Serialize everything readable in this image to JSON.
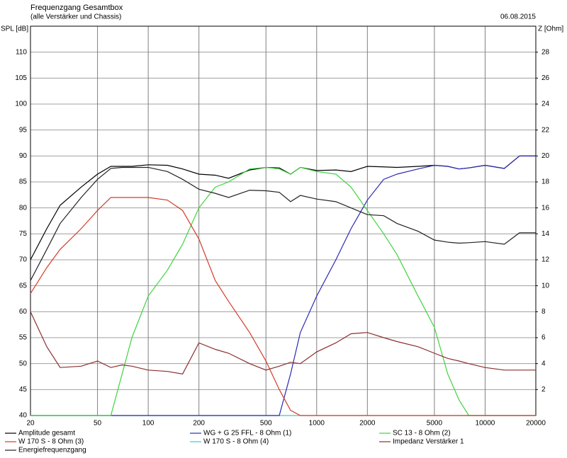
{
  "chart_data": {
    "type": "line",
    "title": "Frequenzgang Gesamtbox",
    "subtitle": "(alle Verstärker und Chassis)",
    "date": "06.08.2015",
    "y_label": "SPL [dB]",
    "y2_label": "Z [Ohm]",
    "xscale": "log",
    "grid": true,
    "xlim": [
      20,
      20000
    ],
    "xticks": [
      20,
      50,
      100,
      200,
      500,
      1000,
      2000,
      5000,
      10000,
      20000
    ],
    "ylim": [
      40,
      115
    ],
    "yticks": [
      40,
      45,
      50,
      55,
      60,
      65,
      70,
      75,
      80,
      85,
      90,
      95,
      100,
      105,
      110
    ],
    "y2lim": [
      0,
      30
    ],
    "y2ticks": [
      2,
      4,
      6,
      8,
      10,
      12,
      14,
      16,
      18,
      20,
      22,
      24,
      26,
      28
    ],
    "x": [
      20,
      25,
      30,
      40,
      50,
      60,
      70,
      80,
      100,
      130,
      160,
      200,
      250,
      300,
      400,
      500,
      600,
      700,
      800,
      1000,
      1300,
      1600,
      2000,
      2500,
      3000,
      4000,
      5000,
      6000,
      7000,
      8000,
      10000,
      13000,
      16000,
      20000
    ],
    "series": [
      {
        "name": "Amplitude gesamt",
        "color": "#000000",
        "values": [
          70,
          76,
          80.5,
          84,
          86.5,
          88,
          88,
          88,
          88.3,
          88.2,
          87.5,
          86.5,
          86.3,
          85.7,
          87.3,
          87.8,
          87.7,
          86.5,
          87.8,
          87.2,
          87.3,
          87,
          88,
          87.9,
          87.8,
          88,
          88.2,
          88,
          87.5,
          87.7,
          88.2,
          87.6,
          90,
          90
        ]
      },
      {
        "name": "WG + G 25 FFL - 8 Ohm (1)",
        "color": "#2a2ab4",
        "values": [
          40,
          40,
          40,
          40,
          40,
          40,
          40,
          40,
          40,
          40,
          40,
          40,
          40,
          40,
          40,
          40,
          40,
          48,
          56,
          63,
          70,
          76,
          81.5,
          85.5,
          86.5,
          87.5,
          88.2,
          88,
          87.5,
          87.7,
          88.2,
          87.6,
          90,
          90
        ]
      },
      {
        "name": "SC 13 - 8 Ohm (2)",
        "color": "#3fd43f",
        "values": [
          40,
          40,
          40,
          40,
          40,
          40,
          48,
          55,
          63,
          68,
          73,
          80,
          84,
          85,
          87.5,
          87.8,
          87.5,
          86.5,
          87.8,
          87,
          86.5,
          84,
          79.5,
          75,
          71,
          63,
          57,
          48,
          43,
          40,
          40,
          40,
          40,
          40
        ]
      },
      {
        "name": "W 170 S - 8 Ohm (3)",
        "color": "#d23c2a",
        "values": [
          63.5,
          68.5,
          72,
          76,
          79.5,
          82,
          82,
          82,
          82,
          81.5,
          79.5,
          74,
          66,
          62,
          56,
          50.5,
          45,
          41,
          40,
          40,
          40,
          40,
          40,
          40,
          40,
          40,
          40,
          40,
          40,
          40,
          40,
          40,
          40,
          40
        ]
      },
      {
        "name": "W 170 S - 8 Ohm (4)",
        "color": "#3cc8d2",
        "values": [
          40,
          40,
          40,
          40,
          40,
          40,
          40,
          40,
          40,
          40,
          40,
          40,
          40,
          40,
          40,
          40,
          40,
          40,
          40,
          40,
          40,
          40,
          40,
          40,
          40,
          40,
          40,
          40,
          40,
          40,
          40,
          40,
          40,
          40
        ]
      },
      {
        "name": "Impedanz Verstärker 1",
        "color": "#8b2e2e",
        "axis": "y2",
        "values": [
          8,
          5.3,
          3.7,
          3.8,
          4.2,
          3.7,
          3.9,
          3.8,
          3.5,
          3.4,
          3.2,
          5.6,
          5.1,
          4.8,
          4,
          3.5,
          3.8,
          4.1,
          4,
          4.9,
          5.6,
          6.3,
          6.4,
          6,
          5.7,
          5.3,
          4.8,
          4.4,
          4.2,
          4,
          3.7,
          3.5,
          3.5,
          3.5
        ]
      },
      {
        "name": "Energiefrequenzgang",
        "color": "#222222",
        "values": [
          66,
          72,
          77,
          82,
          85.5,
          87.6,
          87.8,
          87.8,
          87.8,
          87,
          85.5,
          83.6,
          82.8,
          82,
          83.4,
          83.3,
          83,
          81.2,
          82.4,
          81.7,
          81.2,
          80,
          78.7,
          78.5,
          77,
          75.5,
          73.8,
          73.4,
          73.2,
          73.3,
          73.5,
          73,
          75.2,
          75.2
        ]
      }
    ]
  }
}
